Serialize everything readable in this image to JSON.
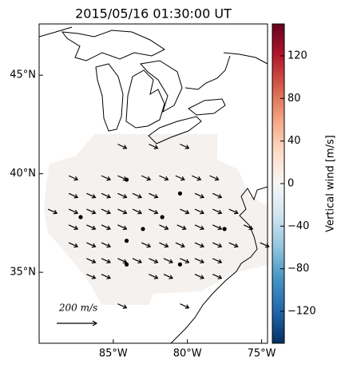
{
  "chart_data": {
    "type": "quiver",
    "title": "2015/05/16 01:30:00 UT",
    "xlim": [
      -90,
      -74.6
    ],
    "ylim": [
      31.4,
      47.6
    ],
    "xticks": [
      {
        "value": -85,
        "label": "85°W"
      },
      {
        "value": -80,
        "label": "80°W"
      },
      {
        "value": -75,
        "label": "75°W"
      }
    ],
    "yticks": [
      {
        "value": 35,
        "label": "35°N"
      },
      {
        "value": 40,
        "label": "40°N"
      },
      {
        "value": 45,
        "label": "45°N"
      }
    ],
    "vectors": [
      [
        -84.7,
        41.5,
        44,
        -20
      ],
      [
        -82.6,
        41.5,
        44,
        -20
      ],
      [
        -80.5,
        41.5,
        44,
        -20
      ],
      [
        -88.0,
        39.9,
        44,
        -20
      ],
      [
        -85.8,
        39.9,
        44,
        -20
      ],
      [
        -84.7,
        39.9,
        44,
        -20
      ],
      [
        -83.1,
        39.9,
        44,
        -20
      ],
      [
        -81.9,
        39.9,
        44,
        -20
      ],
      [
        -80.8,
        39.9,
        44,
        -20
      ],
      [
        -79.7,
        39.9,
        44,
        -20
      ],
      [
        -78.5,
        39.9,
        44,
        -20
      ],
      [
        -88.0,
        39.0,
        44,
        -20
      ],
      [
        -86.8,
        39.0,
        44,
        -20
      ],
      [
        -85.8,
        39.0,
        44,
        -20
      ],
      [
        -84.7,
        39.0,
        44,
        -20
      ],
      [
        -83.7,
        39.0,
        44,
        -20
      ],
      [
        -82.6,
        39.0,
        44,
        -20
      ],
      [
        -79.5,
        39.0,
        44,
        -20
      ],
      [
        -78.3,
        39.0,
        44,
        -20
      ],
      [
        -89.4,
        38.2,
        44,
        -20
      ],
      [
        -88.0,
        38.2,
        44,
        -20
      ],
      [
        -86.8,
        38.2,
        44,
        -20
      ],
      [
        -85.8,
        38.2,
        44,
        -20
      ],
      [
        -84.7,
        38.2,
        44,
        -20
      ],
      [
        -83.7,
        38.2,
        44,
        -20
      ],
      [
        -82.6,
        38.2,
        44,
        -20
      ],
      [
        -80.5,
        38.2,
        44,
        -20
      ],
      [
        -79.5,
        38.2,
        44,
        -20
      ],
      [
        -78.3,
        38.2,
        44,
        -20
      ],
      [
        -77.2,
        38.2,
        44,
        -20
      ],
      [
        -88.0,
        37.4,
        44,
        -20
      ],
      [
        -86.8,
        37.4,
        44,
        -20
      ],
      [
        -85.8,
        37.4,
        44,
        -20
      ],
      [
        -84.7,
        37.4,
        44,
        -20
      ],
      [
        -81.9,
        37.4,
        44,
        -20
      ],
      [
        -80.7,
        37.4,
        44,
        -20
      ],
      [
        -79.5,
        37.4,
        44,
        -20
      ],
      [
        -78.3,
        37.4,
        44,
        -20
      ],
      [
        -76.2,
        37.4,
        44,
        -20
      ],
      [
        -88.0,
        36.5,
        44,
        -20
      ],
      [
        -86.8,
        36.5,
        44,
        -20
      ],
      [
        -85.8,
        36.5,
        44,
        -20
      ],
      [
        -83.1,
        36.5,
        44,
        -20
      ],
      [
        -81.9,
        36.5,
        44,
        -20
      ],
      [
        -80.8,
        36.5,
        44,
        -20
      ],
      [
        -79.5,
        36.5,
        44,
        -20
      ],
      [
        -78.3,
        36.5,
        44,
        -20
      ],
      [
        -77.2,
        36.5,
        44,
        -20
      ],
      [
        -75.1,
        36.5,
        44,
        -20
      ],
      [
        -86.8,
        35.7,
        44,
        -20
      ],
      [
        -85.8,
        35.7,
        44,
        -20
      ],
      [
        -84.7,
        35.7,
        44,
        -20
      ],
      [
        -83.7,
        35.7,
        44,
        -20
      ],
      [
        -82.6,
        35.7,
        44,
        -20
      ],
      [
        -81.6,
        35.7,
        44,
        -20
      ],
      [
        -80.5,
        35.7,
        44,
        -20
      ],
      [
        -79.5,
        35.7,
        44,
        -20
      ],
      [
        -78.3,
        35.7,
        44,
        -20
      ],
      [
        -86.8,
        34.9,
        44,
        -20
      ],
      [
        -85.8,
        34.9,
        44,
        -20
      ],
      [
        -82.6,
        34.9,
        44,
        -20
      ],
      [
        -81.6,
        34.9,
        44,
        -20
      ],
      [
        -79.5,
        34.9,
        44,
        -20
      ],
      [
        -78.3,
        34.9,
        44,
        -20
      ],
      [
        -84.7,
        33.4,
        44,
        -20
      ],
      [
        -80.5,
        33.4,
        44,
        -20
      ],
      [
        -87.2,
        37.8,
        0,
        0
      ],
      [
        -84.1,
        39.7,
        0,
        0
      ],
      [
        -80.5,
        39.0,
        0,
        0
      ],
      [
        -84.1,
        36.6,
        0,
        0
      ],
      [
        -83.0,
        37.2,
        0,
        0
      ],
      [
        -81.7,
        37.8,
        0,
        0
      ],
      [
        -77.5,
        37.2,
        0,
        0
      ],
      [
        -84.1,
        35.4,
        0,
        0
      ],
      [
        -80.5,
        35.4,
        0,
        0
      ]
    ],
    "quiver_key": {
      "value": 200,
      "label": "200 m/s"
    },
    "colorbar": {
      "label": "Vertical wind [m/s]",
      "lim": [
        -150,
        150
      ],
      "ticks": [
        {
          "value": -120,
          "label": "−120"
        },
        {
          "value": -80,
          "label": "−80"
        },
        {
          "value": -40,
          "label": "−40"
        },
        0,
        40,
        80,
        120
      ],
      "colors": [
        "#67001f",
        "#b2182b",
        "#d6604d",
        "#f4a582",
        "#fddbc7",
        "#f7f7f7",
        "#d1e5f0",
        "#92c5de",
        "#4393c3",
        "#2166ac",
        "#053061"
      ]
    }
  }
}
